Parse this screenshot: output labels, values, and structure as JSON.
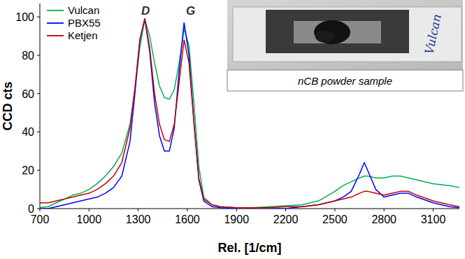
{
  "chart_data": {
    "type": "line",
    "x_label": "Rel. [1/cm]",
    "y_label": "CCD cts",
    "x": [
      700,
      750,
      800,
      850,
      900,
      950,
      1000,
      1050,
      1100,
      1150,
      1200,
      1250,
      1280,
      1310,
      1340,
      1370,
      1400,
      1430,
      1460,
      1490,
      1520,
      1550,
      1580,
      1610,
      1640,
      1670,
      1700,
      1750,
      1800,
      1900,
      2000,
      2100,
      2200,
      2300,
      2400,
      2500,
      2550,
      2600,
      2650,
      2680,
      2700,
      2750,
      2800,
      2850,
      2900,
      2950,
      3000,
      3100,
      3200,
      3260
    ],
    "series": [
      {
        "name": "Vulcan",
        "color": "#00b050",
        "values": [
          0.5,
          1,
          3,
          5,
          7,
          8,
          10,
          13,
          17,
          22,
          29,
          44,
          62,
          84,
          99,
          90,
          76,
          64,
          58,
          57,
          62,
          76,
          94,
          85,
          55,
          22,
          6,
          2,
          1,
          0.5,
          0.5,
          1,
          1.5,
          2,
          4,
          9,
          12,
          14,
          16,
          17,
          17,
          16,
          16,
          17,
          17,
          16,
          15,
          13,
          12,
          11
        ]
      },
      {
        "name": "PBX55",
        "color": "#0000ff",
        "values": [
          0,
          0,
          1,
          2,
          3,
          4,
          5,
          6,
          8,
          11,
          17,
          35,
          60,
          88,
          99,
          82,
          55,
          38,
          30,
          30,
          42,
          72,
          97,
          80,
          45,
          15,
          4,
          1,
          0.5,
          0,
          0,
          0,
          0,
          1,
          2,
          4,
          6,
          9,
          18,
          24,
          20,
          10,
          6,
          7,
          8,
          8,
          6,
          3,
          1,
          0.5
        ]
      },
      {
        "name": "Ketjen",
        "color": "#c00000",
        "values": [
          3,
          3,
          4,
          5,
          6,
          7,
          8,
          10,
          13,
          17,
          24,
          42,
          63,
          88,
          99,
          84,
          60,
          44,
          36,
          35,
          44,
          66,
          88,
          76,
          45,
          16,
          5,
          2,
          1,
          0.5,
          0.5,
          0.5,
          1,
          1,
          2,
          4,
          5,
          6,
          8,
          9,
          9,
          8,
          7,
          8,
          9,
          9,
          7,
          4,
          2,
          1
        ]
      }
    ],
    "xlim": [
      700,
      3260
    ],
    "ylim": [
      0,
      107
    ],
    "xticks": [
      700,
      1000,
      1300,
      1600,
      1900,
      2200,
      2500,
      2800,
      3100
    ],
    "yticks": [
      0,
      20,
      40,
      60,
      80,
      100
    ],
    "legend": "upper left",
    "annotations": [
      {
        "text": "D",
        "x": 1345,
        "y": 101
      },
      {
        "text": "G",
        "x": 1620,
        "y": 101
      }
    ],
    "inset": {
      "label": "Vulcan",
      "caption": "nCB powder sample"
    }
  }
}
